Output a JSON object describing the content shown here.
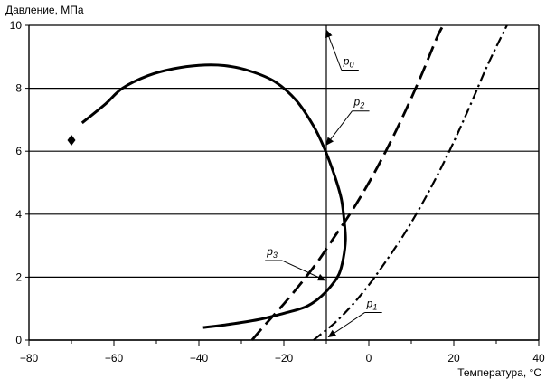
{
  "chart_data": {
    "type": "line",
    "title": "",
    "ylabel": "Давление, МПа",
    "xlabel": "Температура, °С",
    "xlim": [
      -80,
      40
    ],
    "ylim": [
      0,
      10
    ],
    "xticks": [
      -80,
      -60,
      -40,
      -20,
      0,
      20,
      40
    ],
    "yticks": [
      0,
      2,
      4,
      6,
      8,
      10
    ],
    "grid": "horizontal",
    "colors": {
      "line": "#000000",
      "grid": "#000000"
    },
    "series": [
      {
        "style": "solid",
        "points": [
          [
            -67.5,
            6.9
          ],
          [
            -62,
            7.5
          ],
          [
            -58,
            8.0
          ],
          [
            -52,
            8.4
          ],
          [
            -46,
            8.62
          ],
          [
            -40,
            8.73
          ],
          [
            -34,
            8.72
          ],
          [
            -28,
            8.55
          ],
          [
            -22,
            8.2
          ],
          [
            -17,
            7.6
          ],
          [
            -13,
            6.8
          ],
          [
            -10.5,
            6.1
          ],
          [
            -8,
            5.2
          ],
          [
            -6.5,
            4.5
          ],
          [
            -5.8,
            3.8
          ],
          [
            -5.5,
            3.2
          ],
          [
            -6,
            2.6
          ],
          [
            -7,
            2.1
          ],
          [
            -9,
            1.7
          ],
          [
            -12,
            1.3
          ],
          [
            -15,
            1.05
          ],
          [
            -20,
            0.85
          ],
          [
            -26,
            0.65
          ],
          [
            -33,
            0.5
          ],
          [
            -39,
            0.4
          ]
        ]
      },
      {
        "style": "dashed",
        "points": [
          [
            -27.5,
            0
          ],
          [
            -24,
            0.55
          ],
          [
            -20,
            1.15
          ],
          [
            -16,
            1.8
          ],
          [
            -12,
            2.5
          ],
          [
            -8,
            3.3
          ],
          [
            -4,
            4.1
          ],
          [
            0,
            5.0
          ],
          [
            4,
            6.0
          ],
          [
            8,
            7.1
          ],
          [
            12,
            8.3
          ],
          [
            16,
            9.6
          ],
          [
            17.5,
            10
          ]
        ]
      },
      {
        "style": "dashdot",
        "points": [
          [
            -13,
            0
          ],
          [
            -8,
            0.55
          ],
          [
            -4,
            1.1
          ],
          [
            0,
            1.75
          ],
          [
            4,
            2.5
          ],
          [
            8,
            3.3
          ],
          [
            12,
            4.2
          ],
          [
            16,
            5.2
          ],
          [
            20,
            6.3
          ],
          [
            24,
            7.5
          ],
          [
            28,
            8.75
          ],
          [
            32.5,
            10
          ]
        ]
      }
    ],
    "vertical_line": {
      "x": -10
    },
    "marker": {
      "x": -70,
      "y": 6.35,
      "symbol": "diamond"
    },
    "annotations": [
      {
        "base": "p",
        "sub": "0",
        "label_at": [
          -6,
          8.75
        ],
        "arrow_to": [
          -10,
          9.85
        ]
      },
      {
        "base": "p",
        "sub": "2",
        "label_at": [
          -3.5,
          7.45
        ],
        "arrow_to": [
          -10,
          6.2
        ]
      },
      {
        "base": "p",
        "sub": "3",
        "label_at": [
          -24,
          2.7
        ],
        "arrow_to": [
          -10.3,
          1.9
        ]
      },
      {
        "base": "p",
        "sub": "1",
        "label_at": [
          -0.5,
          1.05
        ],
        "arrow_to": [
          -9.5,
          0.1
        ]
      }
    ]
  }
}
